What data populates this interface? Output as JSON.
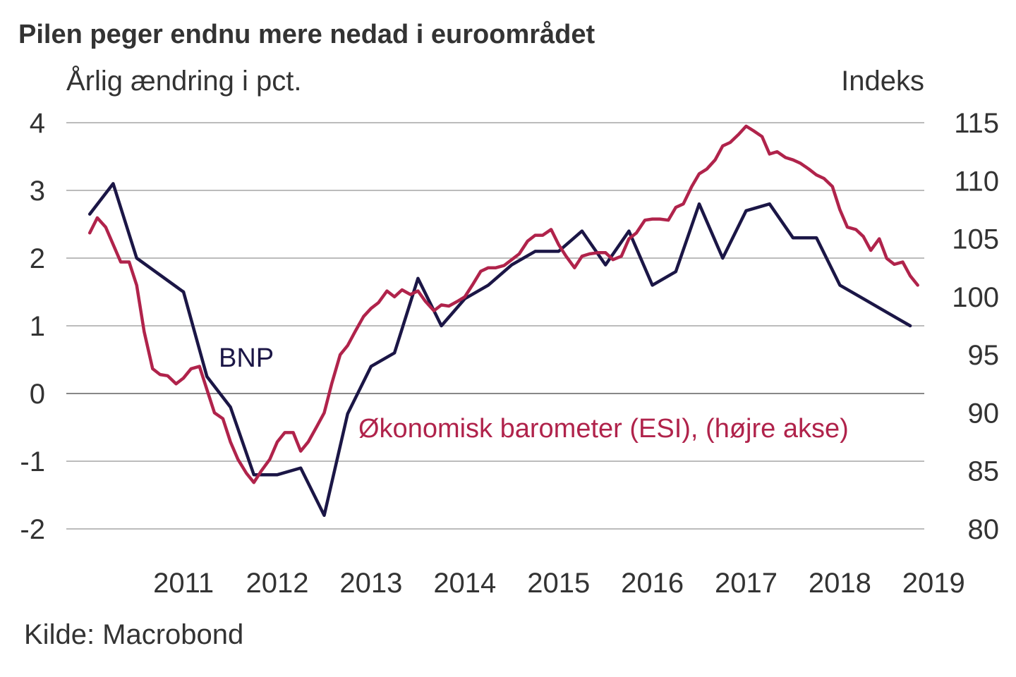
{
  "chart_data": {
    "type": "line",
    "title": "Pilen peger endnu mere nedad i euroområdet",
    "ylabel_left": "Årlig ændring i pct.",
    "ylabel_right": "Indeks",
    "source": "Kilde: Macrobond",
    "x_ticks": [
      "2011",
      "2012",
      "2013",
      "2014",
      "2015",
      "2016",
      "2017",
      "2018",
      "2019"
    ],
    "x_range": [
      2010.25,
      2019.4
    ],
    "y_left": {
      "ticks": [
        "4",
        "3",
        "2",
        "1",
        "0",
        "-1",
        "-2"
      ],
      "range": [
        -2,
        4
      ]
    },
    "y_right": {
      "ticks": [
        "115",
        "110",
        "105",
        "100",
        "95",
        "90",
        "85",
        "80"
      ],
      "range": [
        80,
        115
      ]
    },
    "grid": true,
    "colors": {
      "bnp": "#1b1646",
      "esi": "#b0234b",
      "grid": "#a6a6a6",
      "zero": "#888888",
      "text": "#333333"
    },
    "series": [
      {
        "name": "BNP",
        "axis": "left",
        "color": "#1b1646",
        "points": [
          [
            2010.5,
            2.65
          ],
          [
            2010.75,
            3.1
          ],
          [
            2011.0,
            2.0
          ],
          [
            2011.25,
            1.75
          ],
          [
            2011.5,
            1.5
          ],
          [
            2011.75,
            0.25
          ],
          [
            2012.0,
            -0.2
          ],
          [
            2012.25,
            -1.2
          ],
          [
            2012.5,
            -1.2
          ],
          [
            2012.75,
            -1.1
          ],
          [
            2013.0,
            -1.8
          ],
          [
            2013.25,
            -0.3
          ],
          [
            2013.5,
            0.4
          ],
          [
            2013.75,
            0.6
          ],
          [
            2014.0,
            1.7
          ],
          [
            2014.25,
            1.0
          ],
          [
            2014.5,
            1.4
          ],
          [
            2014.75,
            1.6
          ],
          [
            2015.0,
            1.9
          ],
          [
            2015.25,
            2.1
          ],
          [
            2015.5,
            2.1
          ],
          [
            2015.75,
            2.4
          ],
          [
            2016.0,
            1.9
          ],
          [
            2016.25,
            2.4
          ],
          [
            2016.5,
            1.6
          ],
          [
            2016.75,
            1.8
          ],
          [
            2017.0,
            2.8
          ],
          [
            2017.25,
            2.0
          ],
          [
            2017.5,
            2.7
          ],
          [
            2017.75,
            2.8
          ],
          [
            2018.0,
            2.3
          ],
          [
            2018.25,
            2.3
          ],
          [
            2018.5,
            1.6
          ],
          [
            2018.75,
            1.4
          ],
          [
            2019.0,
            1.2
          ],
          [
            2019.25,
            1.0
          ]
        ]
      },
      {
        "name": "Økonomisk barometer (ESI), (højre akse)",
        "axis": "right",
        "color": "#b0234b",
        "points": [
          [
            2010.5,
            105.5
          ],
          [
            2010.58,
            106.8
          ],
          [
            2010.67,
            106.0
          ],
          [
            2010.75,
            104.5
          ],
          [
            2010.83,
            103.0
          ],
          [
            2010.92,
            103.0
          ],
          [
            2011.0,
            101.0
          ],
          [
            2011.08,
            97.0
          ],
          [
            2011.17,
            93.8
          ],
          [
            2011.25,
            93.3
          ],
          [
            2011.33,
            93.2
          ],
          [
            2011.42,
            92.5
          ],
          [
            2011.5,
            93.0
          ],
          [
            2011.58,
            93.8
          ],
          [
            2011.67,
            94.0
          ],
          [
            2011.75,
            92.0
          ],
          [
            2011.83,
            90.0
          ],
          [
            2011.92,
            89.5
          ],
          [
            2012.0,
            87.5
          ],
          [
            2012.08,
            86.0
          ],
          [
            2012.17,
            84.8
          ],
          [
            2012.25,
            84.0
          ],
          [
            2012.33,
            85.0
          ],
          [
            2012.42,
            86.0
          ],
          [
            2012.5,
            87.5
          ],
          [
            2012.58,
            88.3
          ],
          [
            2012.67,
            88.3
          ],
          [
            2012.75,
            86.7
          ],
          [
            2012.83,
            87.5
          ],
          [
            2012.92,
            88.8
          ],
          [
            2013.0,
            90.0
          ],
          [
            2013.08,
            92.5
          ],
          [
            2013.17,
            95.0
          ],
          [
            2013.25,
            95.8
          ],
          [
            2013.33,
            97.0
          ],
          [
            2013.42,
            98.3
          ],
          [
            2013.5,
            99.0
          ],
          [
            2013.58,
            99.5
          ],
          [
            2013.67,
            100.5
          ],
          [
            2013.75,
            100.0
          ],
          [
            2013.83,
            100.6
          ],
          [
            2013.92,
            100.2
          ],
          [
            2014.0,
            100.5
          ],
          [
            2014.08,
            99.6
          ],
          [
            2014.17,
            98.8
          ],
          [
            2014.25,
            99.3
          ],
          [
            2014.33,
            99.2
          ],
          [
            2014.42,
            99.6
          ],
          [
            2014.5,
            100.0
          ],
          [
            2014.58,
            101.0
          ],
          [
            2014.67,
            102.2
          ],
          [
            2014.75,
            102.5
          ],
          [
            2014.83,
            102.5
          ],
          [
            2014.92,
            102.7
          ],
          [
            2015.0,
            103.2
          ],
          [
            2015.08,
            103.7
          ],
          [
            2015.17,
            104.8
          ],
          [
            2015.25,
            105.3
          ],
          [
            2015.33,
            105.3
          ],
          [
            2015.42,
            105.8
          ],
          [
            2015.5,
            104.5
          ],
          [
            2015.58,
            103.5
          ],
          [
            2015.67,
            102.5
          ],
          [
            2015.75,
            103.5
          ],
          [
            2015.83,
            103.7
          ],
          [
            2015.92,
            103.8
          ],
          [
            2016.0,
            103.8
          ],
          [
            2016.08,
            103.2
          ],
          [
            2016.17,
            103.5
          ],
          [
            2016.25,
            105.0
          ],
          [
            2016.33,
            105.5
          ],
          [
            2016.42,
            106.6
          ],
          [
            2016.5,
            106.7
          ],
          [
            2016.58,
            106.7
          ],
          [
            2016.67,
            106.6
          ],
          [
            2016.75,
            107.7
          ],
          [
            2016.83,
            108.0
          ],
          [
            2016.92,
            109.5
          ],
          [
            2017.0,
            110.6
          ],
          [
            2017.08,
            111.0
          ],
          [
            2017.17,
            111.8
          ],
          [
            2017.25,
            113.0
          ],
          [
            2017.33,
            113.3
          ],
          [
            2017.42,
            114.0
          ],
          [
            2017.5,
            114.7
          ],
          [
            2017.58,
            114.3
          ],
          [
            2017.67,
            113.8
          ],
          [
            2017.75,
            112.3
          ],
          [
            2017.83,
            112.5
          ],
          [
            2017.92,
            112.0
          ],
          [
            2018.0,
            111.8
          ],
          [
            2018.08,
            111.5
          ],
          [
            2018.17,
            111.0
          ],
          [
            2018.25,
            110.5
          ],
          [
            2018.33,
            110.2
          ],
          [
            2018.42,
            109.5
          ],
          [
            2018.5,
            107.5
          ],
          [
            2018.58,
            106.0
          ],
          [
            2018.67,
            105.8
          ],
          [
            2018.75,
            105.2
          ],
          [
            2018.83,
            104.0
          ],
          [
            2018.92,
            105.0
          ],
          [
            2019.0,
            103.3
          ],
          [
            2019.08,
            102.8
          ],
          [
            2019.17,
            103.0
          ],
          [
            2019.25,
            101.8
          ],
          [
            2019.33,
            101.0
          ]
        ]
      }
    ]
  }
}
